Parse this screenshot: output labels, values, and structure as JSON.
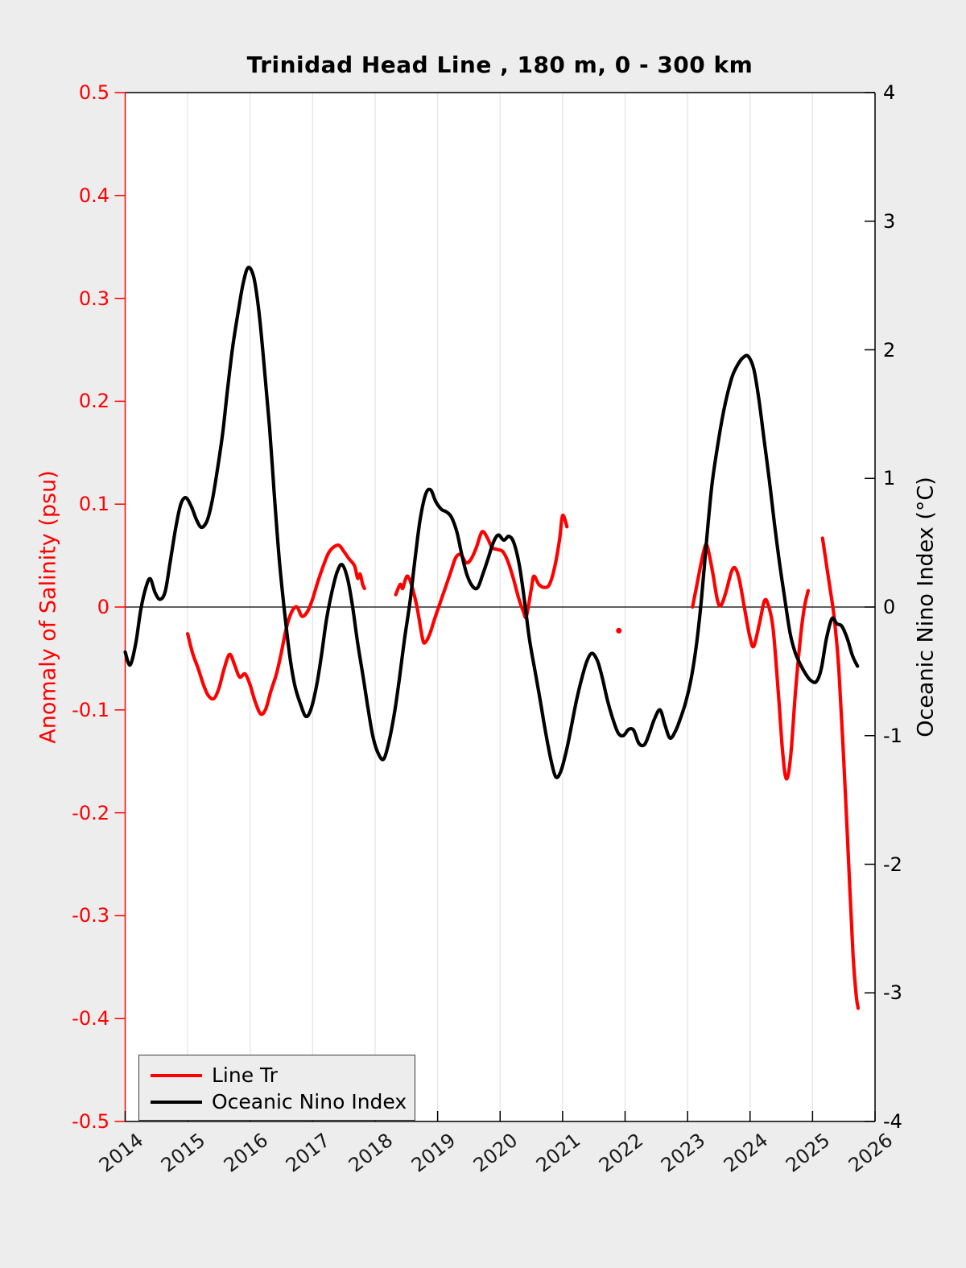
{
  "title": "Trinidad Head Line , 180 m, 0 - 300 km",
  "axes": {
    "left": {
      "label": "Anomaly of Salinity (psu)",
      "color": "#ff0000",
      "range": [
        -0.5,
        0.5
      ],
      "ticks": [
        "0.5",
        "0.4",
        "0.3",
        "0.2",
        "0.1",
        "0",
        "-0.1",
        "-0.2",
        "-0.3",
        "-0.4",
        "-0.5"
      ]
    },
    "right": {
      "label": "Oceanic Nino Index (°C)",
      "color": "#000000",
      "range": [
        -4,
        4
      ],
      "ticks": [
        "4",
        "3",
        "2",
        "1",
        "0",
        "-1",
        "-2",
        "-3",
        "-4"
      ]
    },
    "x": {
      "range": [
        2014,
        2026
      ],
      "ticks": [
        "2014",
        "2015",
        "2016",
        "2017",
        "2018",
        "2019",
        "2020",
        "2021",
        "2022",
        "2023",
        "2024",
        "2025",
        "2026"
      ]
    }
  },
  "legend": {
    "items": [
      {
        "label": "Line Tr",
        "color": "#ff0000"
      },
      {
        "label": "Oceanic Nino Index",
        "color": "#000000"
      }
    ]
  },
  "chart_data": {
    "type": "line",
    "title": "Trinidad Head Line , 180 m, 0 - 300 km",
    "xlabel": "",
    "x_range": [
      2014,
      2026
    ],
    "grid": "vertical-years-only",
    "zero_line": true,
    "series": [
      {
        "name": "Line Tr",
        "axis": "left",
        "color": "#ff0000",
        "ylabel": "Anomaly of Salinity (psu)",
        "ylim": [
          -0.5,
          0.5
        ],
        "segments": [
          {
            "x": [
              2015.0,
              2015.08,
              2015.17,
              2015.25,
              2015.33,
              2015.42,
              2015.5,
              2015.58,
              2015.67,
              2015.75,
              2015.83,
              2015.92,
              2016.0,
              2016.08,
              2016.17,
              2016.25,
              2016.33,
              2016.42,
              2016.5,
              2016.58,
              2016.67,
              2016.75,
              2016.83,
              2016.92,
              2017.0,
              2017.08,
              2017.17,
              2017.25,
              2017.33,
              2017.42,
              2017.5,
              2017.58,
              2017.67,
              2017.72,
              2017.76,
              2017.8,
              2017.83
            ],
            "y": [
              -0.026,
              -0.045,
              -0.06,
              -0.075,
              -0.086,
              -0.089,
              -0.079,
              -0.061,
              -0.046,
              -0.056,
              -0.068,
              -0.065,
              -0.076,
              -0.092,
              -0.104,
              -0.099,
              -0.082,
              -0.065,
              -0.044,
              -0.02,
              -0.004,
              0.0,
              -0.009,
              -0.004,
              0.008,
              0.024,
              0.04,
              0.052,
              0.058,
              0.06,
              0.054,
              0.047,
              0.04,
              0.028,
              0.032,
              0.022,
              0.018
            ]
          },
          {
            "x": [
              2018.33,
              2018.4,
              2018.44,
              2018.48,
              2018.52,
              2018.58,
              2018.67,
              2018.75,
              2018.79,
              2018.87,
              2018.95,
              2019.04,
              2019.12,
              2019.21,
              2019.29,
              2019.37,
              2019.46,
              2019.54,
              2019.62,
              2019.71,
              2019.79,
              2019.87,
              2019.95,
              2020.04,
              2020.12,
              2020.21,
              2020.29,
              2020.37,
              2020.42,
              2020.5,
              2020.54,
              2020.62,
              2020.71,
              2020.79,
              2020.87,
              2020.95,
              2021.0,
              2021.07
            ],
            "y": [
              0.012,
              0.022,
              0.018,
              0.026,
              0.03,
              0.022,
              0.0,
              -0.028,
              -0.035,
              -0.027,
              -0.012,
              0.004,
              0.018,
              0.034,
              0.048,
              0.051,
              0.043,
              0.047,
              0.058,
              0.073,
              0.068,
              0.058,
              0.056,
              0.054,
              0.045,
              0.028,
              0.01,
              -0.004,
              -0.009,
              0.018,
              0.03,
              0.022,
              0.019,
              0.022,
              0.038,
              0.065,
              0.089,
              0.078
            ]
          },
          {
            "x": [
              2021.9
            ],
            "y": [
              -0.023
            ]
          },
          {
            "x": [
              2023.08,
              2023.17,
              2023.25,
              2023.31,
              2023.4,
              2023.48,
              2023.54,
              2023.62,
              2023.7,
              2023.76,
              2023.83,
              2023.92,
              2024.0,
              2024.06,
              2024.15,
              2024.23,
              2024.29,
              2024.37,
              2024.46,
              2024.52,
              2024.58,
              2024.65,
              2024.73,
              2024.81,
              2024.87,
              2024.93
            ],
            "y": [
              0.0,
              0.028,
              0.052,
              0.06,
              0.034,
              0.006,
              0.002,
              0.016,
              0.034,
              0.038,
              0.026,
              -0.004,
              -0.03,
              -0.038,
              -0.016,
              0.006,
              0.002,
              -0.022,
              -0.09,
              -0.14,
              -0.167,
              -0.145,
              -0.08,
              -0.028,
              0.0,
              0.016
            ]
          },
          {
            "x": [
              2025.16,
              2025.22,
              2025.29,
              2025.35,
              2025.42,
              2025.5,
              2025.58,
              2025.65,
              2025.7,
              2025.73
            ],
            "y": [
              0.067,
              0.042,
              0.014,
              -0.012,
              -0.06,
              -0.15,
              -0.252,
              -0.34,
              -0.378,
              -0.39
            ]
          }
        ]
      },
      {
        "name": "Oceanic Nino Index",
        "axis": "right",
        "color": "#000000",
        "ylabel": "Oceanic Nino Index (°C)",
        "ylim": [
          -4,
          4
        ],
        "segments": [
          {
            "x": [
              2014.0,
              2014.08,
              2014.17,
              2014.25,
              2014.33,
              2014.4,
              2014.48,
              2014.56,
              2014.64,
              2014.72,
              2014.81,
              2014.89,
              2014.97,
              2015.06,
              2015.14,
              2015.22,
              2015.31,
              2015.39,
              2015.47,
              2015.56,
              2015.64,
              2015.72,
              2015.81,
              2015.89,
              2015.97,
              2016.06,
              2016.14,
              2016.22,
              2016.31,
              2016.39,
              2016.47,
              2016.56,
              2016.64,
              2016.72,
              2016.81,
              2016.89,
              2016.97,
              2017.06,
              2017.14,
              2017.22,
              2017.31,
              2017.39,
              2017.47,
              2017.56,
              2017.64,
              2017.72,
              2017.81,
              2017.89,
              2017.97,
              2018.06,
              2018.14,
              2018.22,
              2018.31,
              2018.39,
              2018.47,
              2018.56,
              2018.64,
              2018.72,
              2018.81,
              2018.89,
              2018.97,
              2019.06,
              2019.14,
              2019.22,
              2019.31,
              2019.39,
              2019.47,
              2019.56,
              2019.64,
              2019.72,
              2019.81,
              2019.89,
              2019.97,
              2020.06,
              2020.14,
              2020.22,
              2020.31,
              2020.39,
              2020.47,
              2020.56,
              2020.64,
              2020.72,
              2020.81,
              2020.89,
              2020.97,
              2021.06,
              2021.14,
              2021.22,
              2021.31,
              2021.39,
              2021.47,
              2021.56,
              2021.64,
              2021.72,
              2021.81,
              2021.89,
              2021.97,
              2022.06,
              2022.14,
              2022.22,
              2022.31,
              2022.39,
              2022.47,
              2022.56,
              2022.64,
              2022.72,
              2022.81,
              2022.89,
              2022.97,
              2023.06,
              2023.14,
              2023.22,
              2023.31,
              2023.39,
              2023.47,
              2023.56,
              2023.64,
              2023.72,
              2023.81,
              2023.89,
              2023.97,
              2024.06,
              2024.14,
              2024.22,
              2024.31,
              2024.39,
              2024.47,
              2024.56,
              2024.64,
              2024.72,
              2024.81,
              2024.89,
              2024.97,
              2025.06,
              2025.14,
              2025.22,
              2025.31,
              2025.39,
              2025.47,
              2025.56,
              2025.64,
              2025.72
            ],
            "y": [
              -0.35,
              -0.45,
              -0.28,
              -0.02,
              0.15,
              0.22,
              0.11,
              0.06,
              0.12,
              0.35,
              0.62,
              0.8,
              0.85,
              0.78,
              0.68,
              0.62,
              0.67,
              0.82,
              1.05,
              1.35,
              1.7,
              2.02,
              2.3,
              2.52,
              2.64,
              2.56,
              2.3,
              1.9,
              1.4,
              0.85,
              0.35,
              -0.08,
              -0.4,
              -0.62,
              -0.76,
              -0.85,
              -0.8,
              -0.62,
              -0.38,
              -0.1,
              0.12,
              0.27,
              0.33,
              0.22,
              0.0,
              -0.28,
              -0.55,
              -0.8,
              -1.02,
              -1.15,
              -1.18,
              -1.05,
              -0.82,
              -0.55,
              -0.25,
              0.05,
              0.38,
              0.68,
              0.88,
              0.91,
              0.82,
              0.76,
              0.74,
              0.7,
              0.58,
              0.4,
              0.25,
              0.16,
              0.15,
              0.25,
              0.38,
              0.5,
              0.56,
              0.52,
              0.55,
              0.5,
              0.32,
              0.05,
              -0.25,
              -0.5,
              -0.72,
              -0.95,
              -1.18,
              -1.32,
              -1.28,
              -1.12,
              -0.93,
              -0.73,
              -0.55,
              -0.42,
              -0.36,
              -0.42,
              -0.56,
              -0.73,
              -0.88,
              -0.98,
              -1.0,
              -0.95,
              -0.96,
              -1.06,
              -1.07,
              -0.98,
              -0.87,
              -0.8,
              -0.92,
              -1.02,
              -0.96,
              -0.86,
              -0.74,
              -0.55,
              -0.3,
              0.05,
              0.55,
              0.95,
              1.22,
              1.48,
              1.66,
              1.8,
              1.89,
              1.94,
              1.95,
              1.85,
              1.62,
              1.32,
              0.98,
              0.65,
              0.35,
              0.05,
              -0.2,
              -0.35,
              -0.45,
              -0.52,
              -0.57,
              -0.58,
              -0.48,
              -0.25,
              -0.09,
              -0.13,
              -0.15,
              -0.25,
              -0.38,
              -0.46
            ]
          }
        ]
      }
    ]
  },
  "style": {
    "figure_bg": "#ededed",
    "plot_bg": "#ffffff",
    "grid_color": "#e3e3e3",
    "zero_line_color": "#000000",
    "left_spine_color": "#ff0000",
    "spine_color": "#000000"
  }
}
